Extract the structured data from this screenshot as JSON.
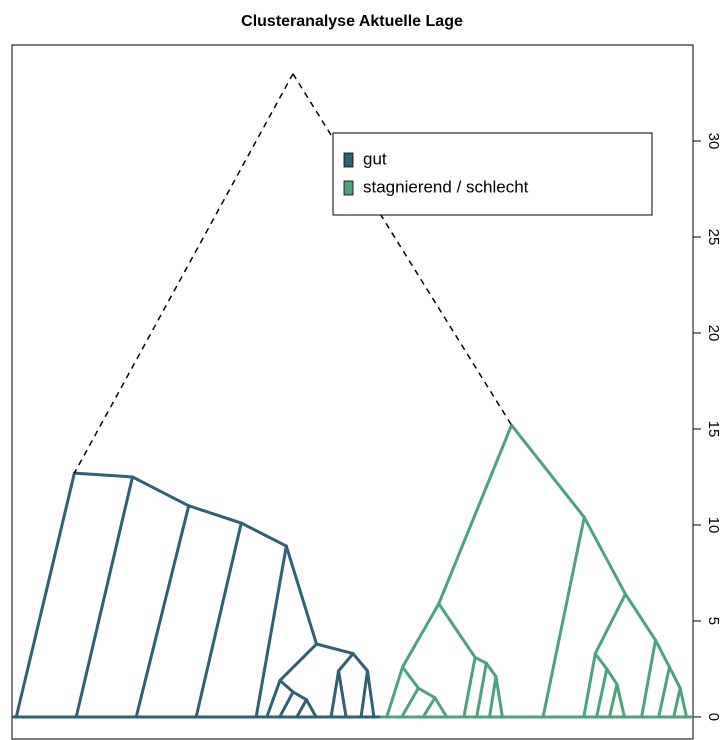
{
  "chart_data": {
    "type": "dendrogram",
    "title": "Clusteranalyse Aktuelle Lage",
    "ylim": [
      -1.2,
      35
    ],
    "yticks": [
      0,
      5,
      10,
      15,
      20,
      25,
      30
    ],
    "root_height": 33.5,
    "legend": "topright",
    "series": [
      {
        "name": "gut",
        "color": "#2d6177",
        "tree": {
          "height": 12.7,
          "children": [
            {
              "n": 2
            },
            {
              "height": 12.5,
              "children": [
                {
                  "n": 26
                },
                {
                  "height": 11.0,
                  "children": [
                    {
                      "n": 2
                    },
                    {
                      "height": 10.1,
                      "children": [
                        {
                          "n": 26
                        },
                        {
                          "height": 8.9,
                          "children": [
                            {
                              "n": 2
                            },
                            {
                              "height": 3.8,
                              "children": [
                                {
                                  "height": 1.9,
                                  "children": [
                                    {
                                      "n": 3
                                    },
                                    {
                                      "height": 1.3,
                                      "children": [
                                        {
                                          "n": 3
                                        },
                                        {
                                          "height": 0.9,
                                          "children": [
                                            {
                                              "n": 5
                                            },
                                            {
                                              "n": 4
                                            }
                                          ]
                                        }
                                      ]
                                    }
                                  ]
                                },
                                {
                                  "height": 3.3,
                                  "children": [
                                    {
                                      "height": 2.4,
                                      "children": [
                                        {
                                          "n": 3
                                        },
                                        {
                                          "n": 4
                                        }
                                      ]
                                    },
                                    {
                                      "height": 2.4,
                                      "children": [
                                        {
                                          "n": 3
                                        },
                                        {
                                          "n": 3
                                        }
                                      ]
                                    }
                                  ]
                                }
                              ]
                            }
                          ]
                        }
                      ]
                    }
                  ]
                }
              ]
            }
          ]
        }
      },
      {
        "name": "stagnierend / schlecht",
        "color": "#4aa37b",
        "tree": {
          "height": 15.2,
          "children": [
            {
              "height": 5.9,
              "children": [
                {
                  "height": 2.6,
                  "children": [
                    {
                      "n": 3
                    },
                    {
                      "height": 1.5,
                      "children": [
                        {
                          "n": 4
                        },
                        {
                          "height": 1.0,
                          "children": [
                            {
                              "n": 6
                            },
                            {
                              "n": 5
                            }
                          ]
                        }
                      ]
                    }
                  ]
                },
                {
                  "height": 3.1,
                  "children": [
                    {
                      "n": 3
                    },
                    {
                      "height": 2.8,
                      "children": [
                        {
                          "n": 3
                        },
                        {
                          "height": 2.1,
                          "children": [
                            {
                              "n": 3
                            },
                            {
                              "n": 3
                            }
                          ]
                        }
                      ]
                    }
                  ]
                }
              ]
            },
            {
              "height": 10.4,
              "children": [
                {
                  "n": 16
                },
                {
                  "height": 6.4,
                  "children": [
                    {
                      "height": 3.3,
                      "children": [
                        {
                          "n": 3
                        },
                        {
                          "height": 2.5,
                          "children": [
                            {
                              "n": 3
                            },
                            {
                              "height": 1.7,
                              "children": [
                                {
                                  "n": 3
                                },
                                {
                                  "n": 4
                                }
                              ]
                            }
                          ]
                        }
                      ]
                    },
                    {
                      "height": 4.0,
                      "children": [
                        {
                          "n": 4
                        },
                        {
                          "height": 2.6,
                          "children": [
                            {
                              "n": 4
                            },
                            {
                              "height": 1.5,
                              "children": [
                                {
                                  "n": 3
                                },
                                {
                                  "n": 3
                                }
                              ]
                            }
                          ]
                        }
                      ]
                    }
                  ]
                }
              ]
            }
          ]
        }
      }
    ]
  }
}
